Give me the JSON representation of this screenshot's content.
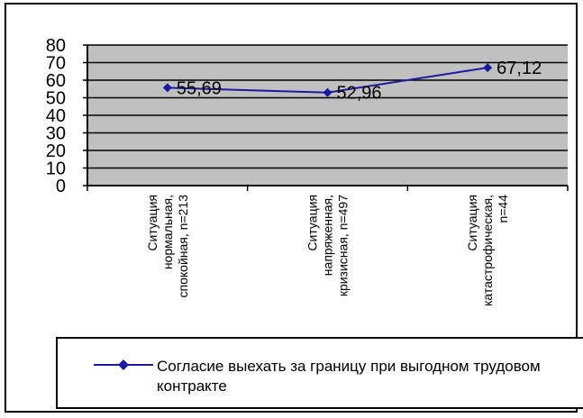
{
  "chart_data": {
    "type": "line",
    "categories": [
      [
        "Ситуация",
        "нормальная,",
        "спокойная, n=213"
      ],
      [
        "Ситуация",
        "напряженная,",
        "кризисная, n=497"
      ],
      [
        "Ситуация",
        "катастрофическая,",
        "n=44"
      ]
    ],
    "series": [
      {
        "name": "Согласие выехать за границу при выгодном трудовом контракте",
        "values": [
          55.69,
          52.96,
          67.12
        ],
        "labels": [
          "55,69",
          "52,96",
          "67,12"
        ],
        "color": "#1a1aa0"
      }
    ],
    "yticks": [
      "0",
      "10",
      "20",
      "30",
      "40",
      "50",
      "60",
      "70",
      "80"
    ],
    "ylim": [
      0,
      80
    ],
    "grid": true,
    "plot_background": "#c0c0c0",
    "legend_position": "bottom",
    "title": "",
    "xlabel": "",
    "ylabel": ""
  }
}
